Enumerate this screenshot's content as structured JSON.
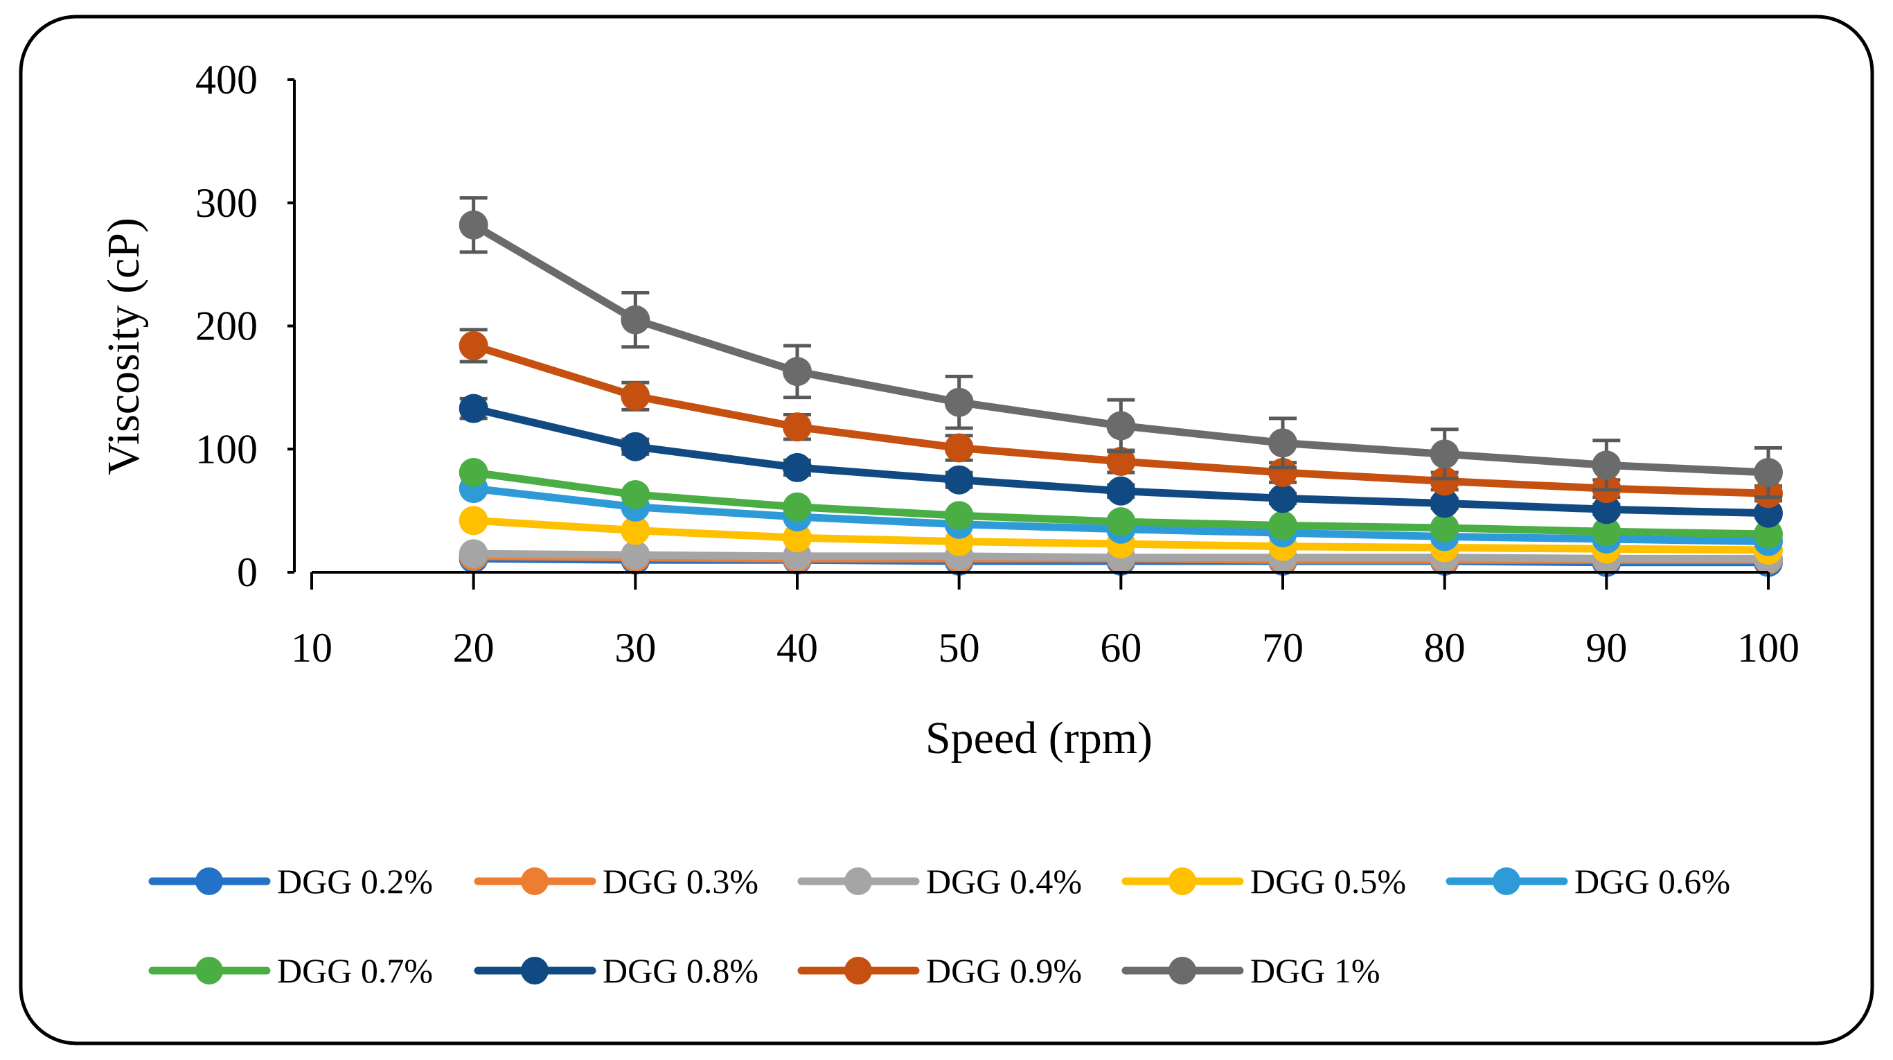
{
  "chart_data": {
    "type": "line",
    "title": "",
    "xlabel": "Speed (rpm)",
    "ylabel": "Viscosity (cP)",
    "xlim": [
      10,
      100
    ],
    "ylim": [
      0,
      400
    ],
    "x_ticks": [
      "10",
      "20",
      "30",
      "40",
      "50",
      "60",
      "70",
      "80",
      "90",
      "100"
    ],
    "y_ticks": [
      "0",
      "100",
      "200",
      "300",
      "400"
    ],
    "x": [
      20,
      30,
      40,
      50,
      60,
      70,
      80,
      90,
      100
    ],
    "grid": false,
    "legend_position": "bottom",
    "series": [
      {
        "name": "DGG 0.2%",
        "color": "#2472C8",
        "values": [
          11,
          10,
          10,
          9,
          9,
          9,
          9,
          8,
          8
        ],
        "errors": [
          0,
          0,
          0,
          0,
          0,
          0,
          0,
          0,
          0
        ]
      },
      {
        "name": "DGG 0.3%",
        "color": "#ED7D31",
        "values": [
          13,
          12,
          11,
          11,
          11,
          10,
          10,
          10,
          10
        ],
        "errors": [
          0,
          0,
          0,
          0,
          0,
          0,
          0,
          0,
          0
        ]
      },
      {
        "name": "DGG 0.4%",
        "color": "#A5A5A5",
        "values": [
          15,
          14,
          13,
          13,
          12,
          12,
          12,
          11,
          11
        ],
        "errors": [
          0,
          0,
          0,
          0,
          0,
          0,
          0,
          0,
          0
        ]
      },
      {
        "name": "DGG 0.5%",
        "color": "#FFC000",
        "values": [
          42,
          34,
          28,
          25,
          23,
          21,
          20,
          19,
          18
        ],
        "errors": [
          0,
          0,
          0,
          0,
          0,
          0,
          0,
          0,
          0
        ]
      },
      {
        "name": "DGG 0.6%",
        "color": "#2E9BD8",
        "values": [
          68,
          53,
          45,
          39,
          35,
          32,
          29,
          27,
          25
        ],
        "errors": [
          0,
          0,
          0,
          0,
          0,
          0,
          0,
          0,
          0
        ]
      },
      {
        "name": "DGG 0.7%",
        "color": "#4AAE45",
        "values": [
          81,
          63,
          53,
          46,
          41,
          38,
          36,
          33,
          31
        ],
        "errors": [
          0,
          0,
          0,
          0,
          0,
          0,
          0,
          0,
          0
        ]
      },
      {
        "name": "DGG 0.8%",
        "color": "#114A82",
        "values": [
          133,
          102,
          85,
          75,
          66,
          60,
          56,
          51,
          48
        ],
        "errors": [
          8,
          6,
          6,
          6,
          5,
          4,
          4,
          4,
          3
        ]
      },
      {
        "name": "DGG 0.9%",
        "color": "#C5500F",
        "values": [
          184,
          143,
          118,
          101,
          90,
          81,
          74,
          68,
          64
        ],
        "errors": [
          13,
          11,
          10,
          10,
          9,
          8,
          7,
          7,
          6
        ]
      },
      {
        "name": "DGG 1%",
        "color": "#6B6B6B",
        "values": [
          282,
          205,
          163,
          138,
          119,
          105,
          96,
          87,
          81
        ],
        "errors": [
          22,
          22,
          21,
          21,
          21,
          20,
          20,
          20,
          20
        ]
      }
    ]
  }
}
